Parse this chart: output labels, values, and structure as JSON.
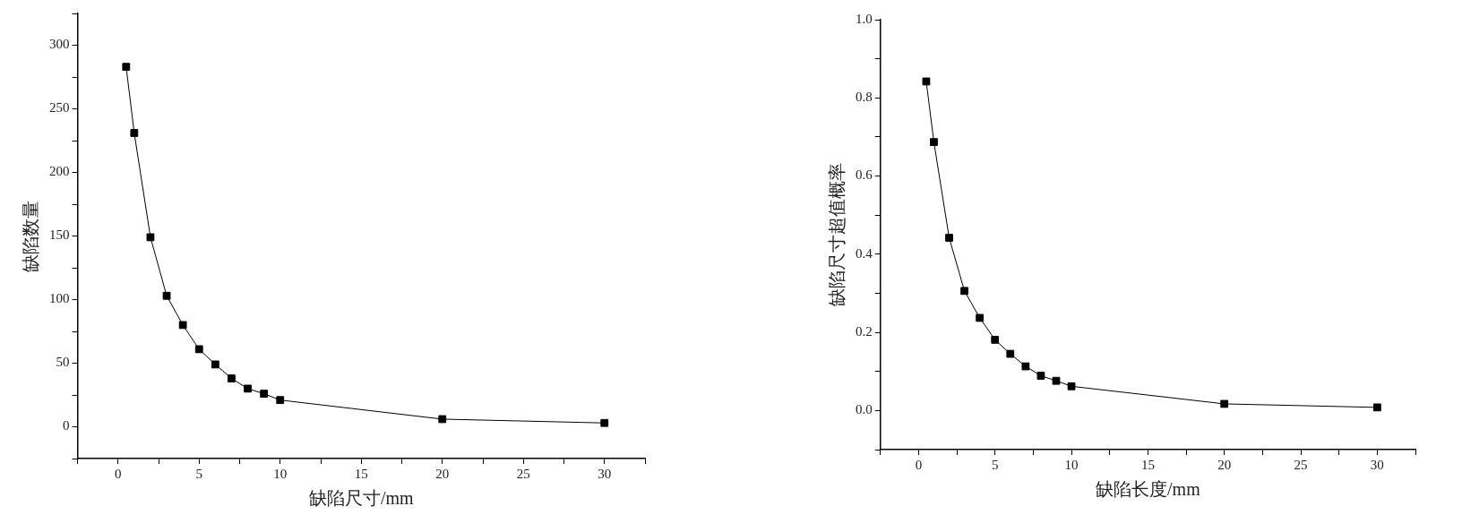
{
  "chart_data": [
    {
      "type": "line",
      "xlabel": "缺陷尺寸/mm",
      "ylabel": "缺陷数量",
      "marker": "square",
      "color": "#000000",
      "grid": false,
      "x": [
        0.5,
        1,
        2,
        3,
        4,
        5,
        6,
        7,
        8,
        9,
        10,
        20,
        30
      ],
      "values": [
        283,
        231,
        149,
        103,
        80,
        61,
        49,
        38,
        30,
        26,
        21,
        6,
        3
      ],
      "xlim": [
        -2.5,
        32.5
      ],
      "ylim": [
        -25,
        325
      ],
      "xticks": [
        {
          "value": -2.5,
          "label": null
        },
        0,
        {
          "value": 2.5,
          "label": null
        },
        5,
        {
          "value": 7.5,
          "label": null
        },
        10,
        {
          "value": 12.5,
          "label": null
        },
        15,
        {
          "value": 17.5,
          "label": null
        },
        20,
        {
          "value": 22.5,
          "label": null
        },
        25,
        {
          "value": 27.5,
          "label": null
        },
        30,
        {
          "value": 32.5,
          "label": null
        }
      ],
      "yticks": [
        {
          "value": -25,
          "label": null
        },
        0,
        {
          "value": 25,
          "label": null
        },
        50,
        {
          "value": 75,
          "label": null
        },
        100,
        {
          "value": 125,
          "label": null
        },
        150,
        {
          "value": 175,
          "label": null
        },
        200,
        {
          "value": 225,
          "label": null
        },
        250,
        {
          "value": 275,
          "label": null
        },
        300,
        {
          "value": 325,
          "label": null
        }
      ]
    },
    {
      "type": "line",
      "xlabel": "缺陷长度/mm",
      "ylabel": "缺陷尺寸超值概率",
      "marker": "square",
      "color": "#000000",
      "grid": false,
      "x": [
        0.5,
        1,
        2,
        3,
        4,
        5,
        6,
        7,
        8,
        9,
        10,
        20,
        30
      ],
      "values": [
        0.842,
        0.687,
        0.442,
        0.306,
        0.237,
        0.181,
        0.145,
        0.113,
        0.089,
        0.076,
        0.062,
        0.017,
        0.008
      ],
      "xlim": [
        -2.5,
        32.5
      ],
      "ylim": [
        -0.1,
        1.0
      ],
      "xticks": [
        {
          "value": -2.5,
          "label": null
        },
        0,
        {
          "value": 2.5,
          "label": null
        },
        5,
        {
          "value": 7.5,
          "label": null
        },
        10,
        {
          "value": 12.5,
          "label": null
        },
        15,
        {
          "value": 17.5,
          "label": null
        },
        20,
        {
          "value": 22.5,
          "label": null
        },
        25,
        {
          "value": 27.5,
          "label": null
        },
        30,
        {
          "value": 32.5,
          "label": null
        }
      ],
      "yticks": [
        {
          "value": -0.1,
          "label": null
        },
        {
          "value": 0,
          "label": "0.0"
        },
        {
          "value": 0.1,
          "label": null
        },
        {
          "value": 0.2,
          "label": "0.2"
        },
        {
          "value": 0.3,
          "label": null
        },
        {
          "value": 0.4,
          "label": "0.4"
        },
        {
          "value": 0.5,
          "label": null
        },
        {
          "value": 0.6,
          "label": "0.6"
        },
        {
          "value": 0.7,
          "label": null
        },
        {
          "value": 0.8,
          "label": "0.8"
        },
        {
          "value": 0.9,
          "label": null
        },
        {
          "value": 1.0,
          "label": "1.0"
        }
      ]
    }
  ]
}
